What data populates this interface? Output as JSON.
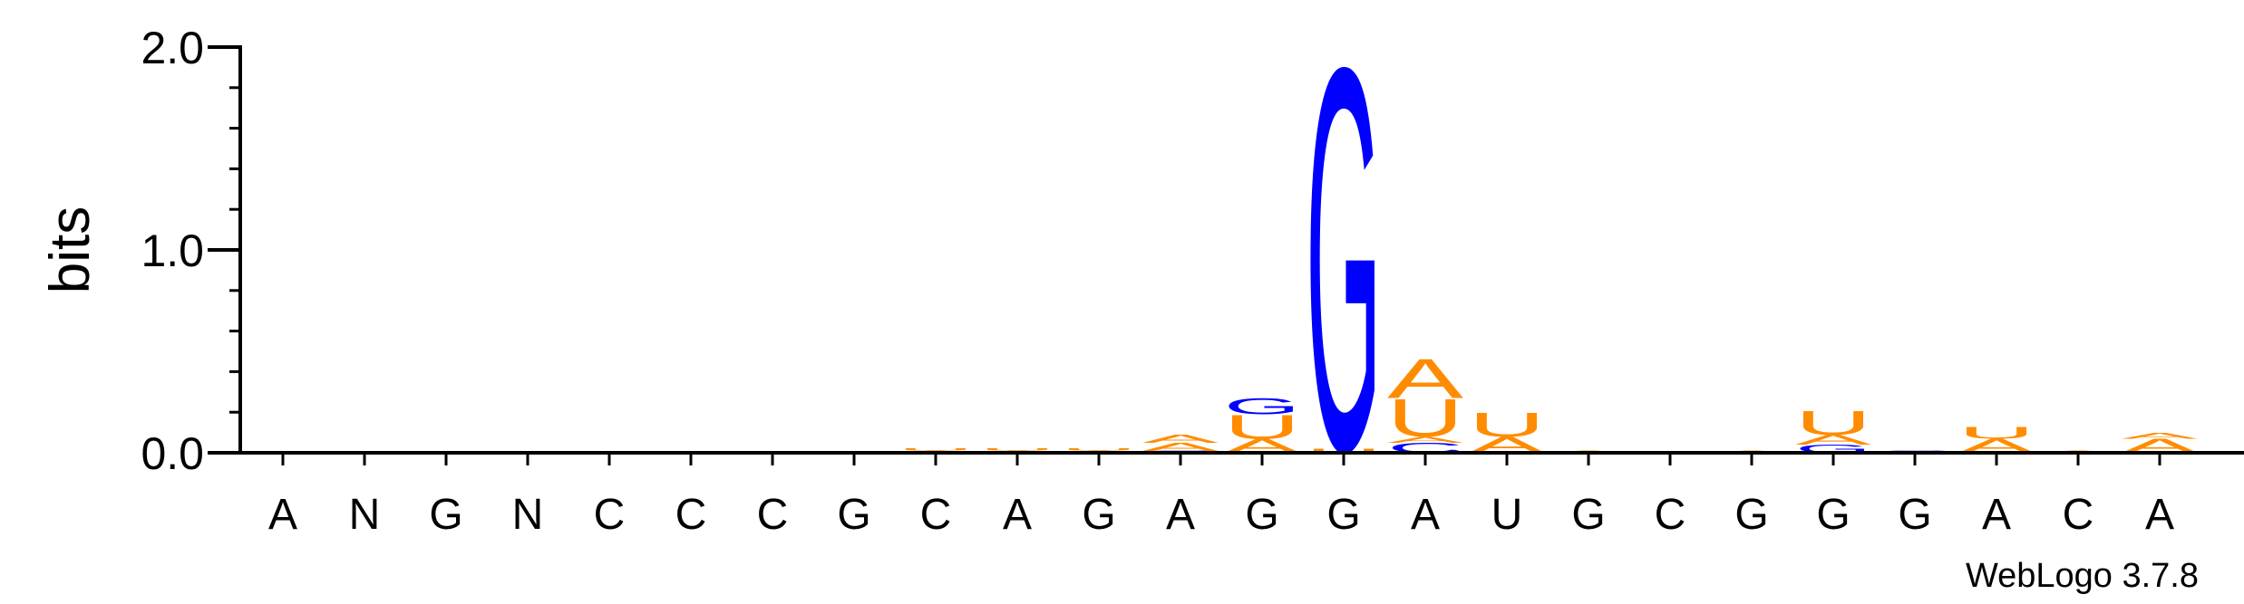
{
  "chart_data": {
    "type": "sequence-logo",
    "ylabel": "bits",
    "ylim": [
      0,
      2.0
    ],
    "yticks": [
      {
        "value": 0,
        "label": "0.0"
      },
      {
        "value": 1,
        "label": "1.0"
      },
      {
        "value": 2,
        "label": "2.0"
      }
    ],
    "positions": [
      "A",
      "N",
      "G",
      "N",
      "C",
      "C",
      "C",
      "G",
      "C",
      "A",
      "G",
      "A",
      "G",
      "G",
      "A",
      "U",
      "G",
      "C",
      "G",
      "G",
      "G",
      "A",
      "C",
      "A"
    ],
    "colors": {
      "A": "#ff8c00",
      "U": "#ff8c00",
      "C": "#0000ff",
      "G": "#0000ff"
    },
    "stacks": [
      [],
      [],
      [],
      [],
      [],
      [],
      [],
      [],
      [
        {
          "letter": "A",
          "height": 0.012
        },
        {
          "letter": "U",
          "height": 0.012
        }
      ],
      [
        {
          "letter": "A",
          "height": 0.012
        },
        {
          "letter": "U",
          "height": 0.012
        }
      ],
      [
        {
          "letter": "A",
          "height": 0.012
        },
        {
          "letter": "U",
          "height": 0.012
        }
      ],
      [
        {
          "letter": "C",
          "height": 0.01
        },
        {
          "letter": "A",
          "height": 0.04
        },
        {
          "letter": "A",
          "height": 0.04
        }
      ],
      [
        {
          "letter": "A",
          "height": 0.07
        },
        {
          "letter": "U",
          "height": 0.12
        },
        {
          "letter": "G",
          "height": 0.08
        }
      ],
      [
        {
          "letter": "U",
          "height": 0.02
        },
        {
          "letter": "G",
          "height": 1.93
        }
      ],
      [
        {
          "letter": "C",
          "height": 0.05
        },
        {
          "letter": "A",
          "height": 0.03
        },
        {
          "letter": "U",
          "height": 0.19
        },
        {
          "letter": "A",
          "height": 0.2
        }
      ],
      [
        {
          "letter": "A",
          "height": 0.08
        },
        {
          "letter": "U",
          "height": 0.12
        }
      ],
      [
        {
          "letter": "A",
          "height": 0.012
        }
      ],
      [
        {
          "letter": "A",
          "height": 0.006
        }
      ],
      [
        {
          "letter": "A",
          "height": 0.012
        }
      ],
      [
        {
          "letter": "G",
          "height": 0.04
        },
        {
          "letter": "A",
          "height": 0.05
        },
        {
          "letter": "U",
          "height": 0.12
        }
      ],
      [
        {
          "letter": "C",
          "height": 0.01
        }
      ],
      [
        {
          "letter": "A",
          "height": 0.07
        },
        {
          "letter": "U",
          "height": 0.06
        }
      ],
      [
        {
          "letter": "A",
          "height": 0.01
        }
      ],
      [
        {
          "letter": "A",
          "height": 0.07
        },
        {
          "letter": "A",
          "height": 0.03
        }
      ]
    ]
  },
  "footer": {
    "credit": "WebLogo 3.7.8"
  }
}
